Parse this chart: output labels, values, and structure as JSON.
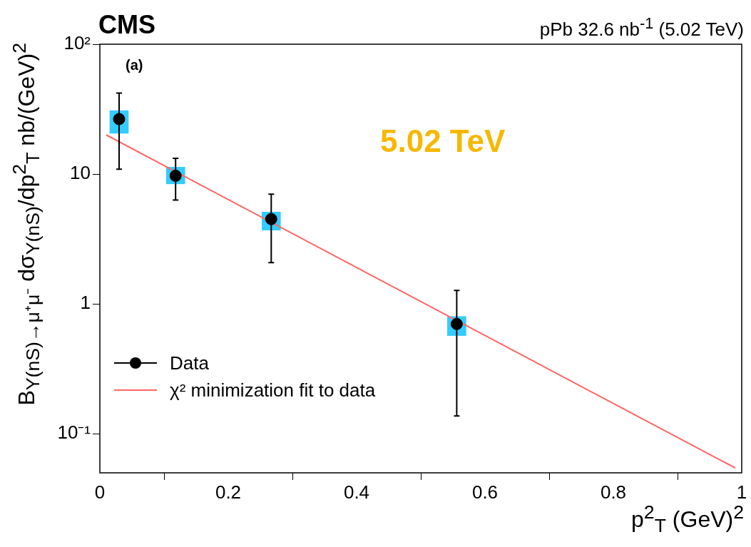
{
  "chart_data": {
    "type": "scatter",
    "title": "CMS",
    "subtitle": "pPb 32.6 nb$^{-1}$ (5.02 TeV)",
    "xlabel": "p$^{2}$$_{T}$ (GeV)$^{2}$",
    "ylabel": "B$_{Υ(nS)→μ⁺μ⁻}$ dσ$_{Υ(nS)}$/dp$^{2}$$_{T}$ nb/(GeV)$^{2}$",
    "annotations": [
      "(a)",
      "5.02 TeV"
    ],
    "log": "y",
    "grid": false,
    "legend": "bottom left",
    "xlim": [
      0,
      1
    ],
    "xticks": [
      0,
      0.2,
      0.4,
      0.6,
      0.8,
      1
    ],
    "ylim": [
      0.05,
      100
    ],
    "yticks": [
      {
        "value": 0.1,
        "label": "10⁻¹"
      },
      1,
      10,
      {
        "value": 100,
        "label": "10²"
      }
    ],
    "series": [
      {
        "type": "bar",
        "color": "#33ccff",
        "x": [
          0.03,
          0.118,
          0.267,
          0.556
        ],
        "base": [
          20.6,
          8.4,
          3.7,
          0.57
        ],
        "values": [
          10.2,
          2.9,
          1.4,
          0.23
        ]
      },
      {
        "name": "Data",
        "color": "#000000",
        "marker": "circle",
        "x": [
          0.03,
          0.118,
          0.267,
          0.556
        ],
        "values": [
          26.5,
          9.7,
          4.5,
          0.7
        ],
        "errors": [
          [
            10.9,
            42
          ],
          [
            6.3,
            13.2
          ],
          [
            2.08,
            7.0
          ],
          [
            0.137,
            1.27
          ]
        ]
      },
      {
        "type": "line",
        "name": "χ² minimization fit to data",
        "color": "#ff6666",
        "line_style": "solid",
        "marker": "none",
        "x": [
          0.01,
          0.99
        ],
        "values": [
          20,
          0.0545
        ]
      }
    ]
  }
}
